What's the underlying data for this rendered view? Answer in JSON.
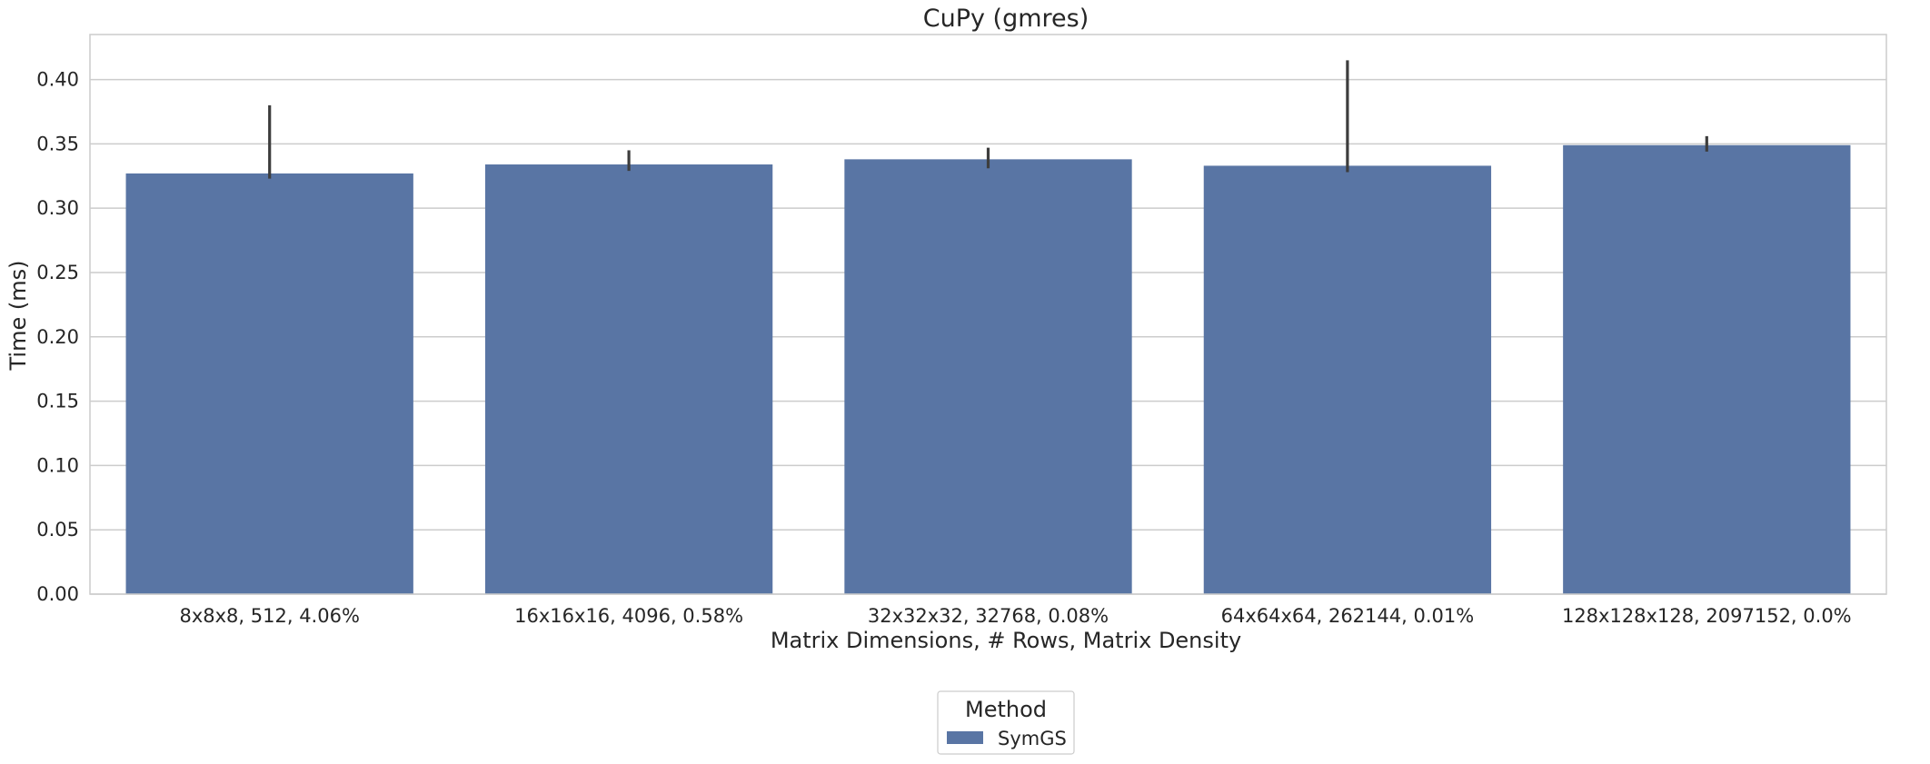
{
  "chart_data": {
    "type": "bar",
    "title": "CuPy (gmres)",
    "xlabel": "Matrix Dimensions, # Rows, Matrix Density",
    "ylabel": "Time (ms)",
    "categories": [
      "8x8x8, 512, 4.06%",
      "16x16x16, 4096, 0.58%",
      "32x32x32, 32768, 0.08%",
      "64x64x64, 262144, 0.01%",
      "128x128x128, 2097152, 0.0%"
    ],
    "series": [
      {
        "name": "SymGS",
        "color": "#5975a4",
        "values": [
          0.327,
          0.334,
          0.338,
          0.333,
          0.349
        ],
        "error_low": [
          0.323,
          0.329,
          0.331,
          0.328,
          0.344
        ],
        "error_high": [
          0.38,
          0.345,
          0.347,
          0.415,
          0.356
        ]
      }
    ],
    "ylim": [
      0,
      0.435
    ],
    "yticks": [
      0.0,
      0.05,
      0.1,
      0.15,
      0.2,
      0.25,
      0.3,
      0.35,
      0.4
    ],
    "ytick_labels": [
      "0.00",
      "0.05",
      "0.10",
      "0.15",
      "0.20",
      "0.25",
      "0.30",
      "0.35",
      "0.40"
    ],
    "grid": "horizontal",
    "legend": {
      "title": "Method",
      "placement": "bottom-center",
      "entries": [
        "SymGS"
      ]
    }
  }
}
